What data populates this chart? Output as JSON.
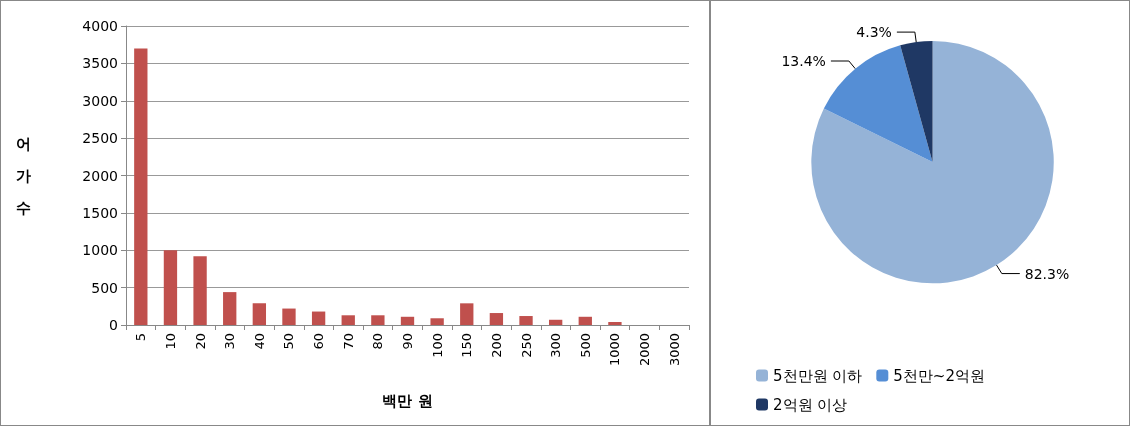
{
  "chart_data": [
    {
      "type": "bar",
      "xlabel": "백만 원",
      "ylabel": "어가수",
      "categories": [
        "5",
        "10",
        "20",
        "30",
        "40",
        "50",
        "60",
        "70",
        "80",
        "90",
        "100",
        "150",
        "200",
        "250",
        "300",
        "500",
        "1000",
        "2000",
        "3000"
      ],
      "values": [
        3700,
        1000,
        920,
        440,
        290,
        220,
        180,
        130,
        130,
        110,
        90,
        290,
        160,
        120,
        70,
        110,
        40,
        0,
        0
      ],
      "color": "#c0504d",
      "ylim": [
        0,
        4000
      ],
      "yticks": [
        0,
        500,
        1000,
        1500,
        2000,
        2500,
        3000,
        3500,
        4000
      ],
      "grid": "y",
      "legend": false
    },
    {
      "type": "pie",
      "categories": [
        "5천만원 이하",
        "5천만~2억원",
        "2억원 이상"
      ],
      "values": [
        82.3,
        13.4,
        4.3
      ],
      "value_labels": [
        "82.3%",
        "13.4%",
        "4.3%"
      ],
      "colors": [
        "#95b3d7",
        "#558ed5",
        "#1f3864"
      ],
      "legend": "bottom"
    }
  ]
}
